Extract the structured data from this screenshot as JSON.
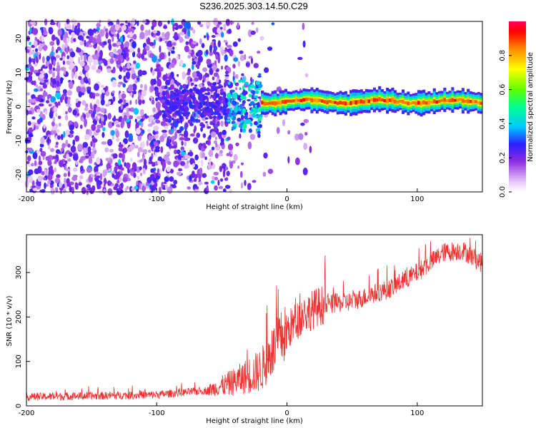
{
  "title": "S236.2025.303.14.50.C29",
  "chart_data": [
    {
      "type": "heatmap",
      "xlabel": "Height of straight line (km)",
      "ylabel": "Frequency (Hz)",
      "xlim": [
        -200,
        150
      ],
      "ylim": [
        -25,
        25
      ],
      "xticks": [
        -200,
        -100,
        0,
        100
      ],
      "xtick_labels": [
        "-200",
        "-100",
        "0",
        "100"
      ],
      "yticks": [
        -20,
        -10,
        0,
        10,
        20
      ],
      "ytick_labels": [
        "-20",
        "-10",
        "0",
        "10",
        "20"
      ],
      "colorbar": {
        "label": "Normalized spectral amplitude",
        "range": [
          0,
          1
        ],
        "ticks": [
          0.0,
          0.2,
          0.4,
          0.6,
          0.8
        ],
        "tick_labels": [
          "0.0",
          "0.2",
          "0.4",
          "0.6",
          "0.8"
        ]
      },
      "features": {
        "noise_region_x": [
          -200,
          -20
        ],
        "noise_amplitude": 0.15,
        "signal_band_x": [
          -20,
          150
        ],
        "signal_center_hz": 1.5,
        "signal_amplitude": 0.9
      }
    },
    {
      "type": "line",
      "xlabel": "Height of straight line (km)",
      "ylabel": "SNR (10 * v/v)",
      "xlim": [
        -200,
        150
      ],
      "ylim": [
        0,
        385
      ],
      "xticks": [
        -200,
        -100,
        0,
        100
      ],
      "xtick_labels": [
        "-200",
        "-100",
        "0",
        "100"
      ],
      "yticks": [
        0,
        100,
        200,
        300
      ],
      "ytick_labels": [
        "0",
        "100",
        "200",
        "300"
      ],
      "color": "#f03030",
      "trend": [
        {
          "x": -200,
          "y": 20
        },
        {
          "x": -100,
          "y": 25
        },
        {
          "x": -60,
          "y": 35
        },
        {
          "x": -40,
          "y": 55
        },
        {
          "x": -20,
          "y": 80
        },
        {
          "x": -5,
          "y": 150
        },
        {
          "x": 10,
          "y": 200
        },
        {
          "x": 25,
          "y": 225
        },
        {
          "x": 50,
          "y": 235
        },
        {
          "x": 80,
          "y": 265
        },
        {
          "x": 100,
          "y": 300
        },
        {
          "x": 120,
          "y": 345
        },
        {
          "x": 135,
          "y": 350
        },
        {
          "x": 150,
          "y": 320
        }
      ]
    }
  ]
}
